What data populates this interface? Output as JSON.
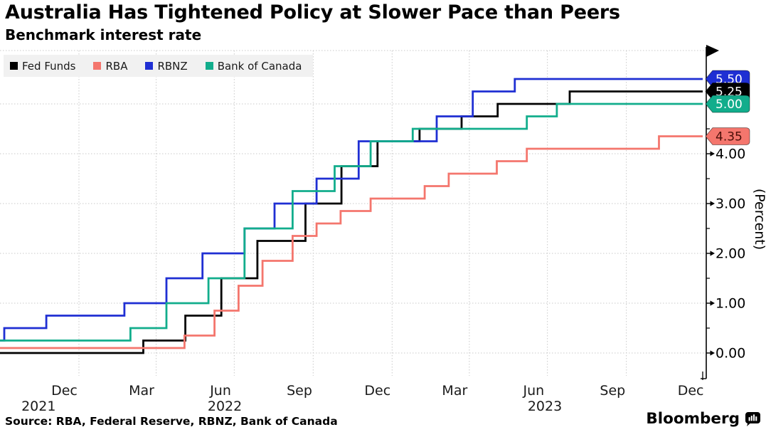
{
  "title": "Australia Has Tightened Policy at Slower Pace than Peers",
  "subtitle": "Benchmark interest rate",
  "source": "Source: RBA, Federal Reserve, RBNZ, Bank of Canada",
  "brand": {
    "wordmark": "Bloomberg",
    "logo_icon": "bloomberg-bars-icon"
  },
  "colors": {
    "grid": "#c9c9c9",
    "axis": "#000000",
    "legend_background": "#f1f1f1",
    "fed_funds": "#000000",
    "rba": "#f4766d",
    "rbnz": "#1f2fd3",
    "bank_of_canada": "#12ad8c"
  },
  "chart_data": {
    "type": "line",
    "style": "step-after",
    "title": "Benchmark interest rate",
    "ylabel": "(Percent)",
    "grid": "dotted",
    "legend_position": "top-left",
    "x_start": "2021-10-01",
    "x_end": "2023-12-29",
    "ylim": [
      -0.5,
      6.1
    ],
    "y_ticks_major": [
      0,
      1,
      2,
      3,
      4,
      5
    ],
    "y_tick_labels": [
      "0.00",
      "1.00",
      "2.00",
      "3.00",
      "4.00",
      "5.00"
    ],
    "y_minor_ticks": [
      0.5,
      1.5,
      2.5,
      3.5,
      4.5,
      5.5
    ],
    "x_gridlines": [
      "2022-01-01",
      "2022-04-01",
      "2022-07-01",
      "2022-10-01",
      "2023-01-01",
      "2023-04-01",
      "2023-07-01",
      "2023-10-01"
    ],
    "x_ticks": [
      {
        "label": "Dec",
        "date": "2021-12-15"
      },
      {
        "label": "Mar",
        "date": "2022-03-15"
      },
      {
        "label": "Jun",
        "date": "2022-06-15"
      },
      {
        "label": "Sep",
        "date": "2022-09-15"
      },
      {
        "label": "Dec",
        "date": "2022-12-15"
      },
      {
        "label": "Mar",
        "date": "2023-03-15"
      },
      {
        "label": "Jun",
        "date": "2023-06-15"
      },
      {
        "label": "Sep",
        "date": "2023-09-15"
      },
      {
        "label": "Dec",
        "date": "2023-12-15"
      }
    ],
    "year_labels": [
      {
        "label": "2021",
        "date": "2021-11-15"
      },
      {
        "label": "2022",
        "date": "2022-06-20"
      },
      {
        "label": "2023",
        "date": "2023-06-28"
      }
    ],
    "series": [
      {
        "name": "Fed Funds",
        "color": "#000000",
        "end_label": "5.25",
        "end_label_text_color": "#ffffff",
        "points": [
          [
            "2021-10-01",
            0.0
          ],
          [
            "2022-03-17",
            0.25
          ],
          [
            "2022-05-05",
            0.75
          ],
          [
            "2022-06-16",
            1.5
          ],
          [
            "2022-07-28",
            2.25
          ],
          [
            "2022-09-22",
            3.0
          ],
          [
            "2022-11-03",
            3.75
          ],
          [
            "2022-12-15",
            4.25
          ],
          [
            "2023-02-02",
            4.5
          ],
          [
            "2023-03-23",
            4.75
          ],
          [
            "2023-05-04",
            5.0
          ],
          [
            "2023-07-27",
            5.25
          ]
        ]
      },
      {
        "name": "RBA",
        "color": "#f4766d",
        "end_label": "4.35",
        "end_label_text_color": "#4a0e08",
        "points": [
          [
            "2021-10-01",
            0.1
          ],
          [
            "2022-05-04",
            0.35
          ],
          [
            "2022-06-08",
            0.85
          ],
          [
            "2022-07-06",
            1.35
          ],
          [
            "2022-08-03",
            1.85
          ],
          [
            "2022-09-07",
            2.35
          ],
          [
            "2022-10-05",
            2.6
          ],
          [
            "2022-11-02",
            2.85
          ],
          [
            "2022-12-07",
            3.1
          ],
          [
            "2023-02-08",
            3.35
          ],
          [
            "2023-03-08",
            3.6
          ],
          [
            "2023-05-03",
            3.85
          ],
          [
            "2023-06-07",
            4.1
          ],
          [
            "2023-11-08",
            4.35
          ]
        ]
      },
      {
        "name": "RBNZ",
        "color": "#1f2fd3",
        "end_label": "5.50",
        "end_label_text_color": "#ffffff",
        "points": [
          [
            "2021-10-01",
            0.25
          ],
          [
            "2021-10-06",
            0.5
          ],
          [
            "2021-11-24",
            0.75
          ],
          [
            "2022-02-23",
            1.0
          ],
          [
            "2022-04-13",
            1.5
          ],
          [
            "2022-05-25",
            2.0
          ],
          [
            "2022-07-13",
            2.5
          ],
          [
            "2022-08-17",
            3.0
          ],
          [
            "2022-10-05",
            3.5
          ],
          [
            "2022-11-23",
            4.25
          ],
          [
            "2023-02-22",
            4.75
          ],
          [
            "2023-04-05",
            5.25
          ],
          [
            "2023-05-24",
            5.5
          ]
        ]
      },
      {
        "name": "Bank of Canada",
        "color": "#12ad8c",
        "end_label": "5.00",
        "end_label_text_color": "#ffffff",
        "points": [
          [
            "2021-10-01",
            0.25
          ],
          [
            "2022-03-02",
            0.5
          ],
          [
            "2022-04-13",
            1.0
          ],
          [
            "2022-06-01",
            1.5
          ],
          [
            "2022-07-13",
            2.5
          ],
          [
            "2022-09-07",
            3.25
          ],
          [
            "2022-10-26",
            3.75
          ],
          [
            "2022-12-07",
            4.25
          ],
          [
            "2023-01-25",
            4.5
          ],
          [
            "2023-06-07",
            4.75
          ],
          [
            "2023-07-12",
            5.0
          ]
        ]
      }
    ]
  }
}
